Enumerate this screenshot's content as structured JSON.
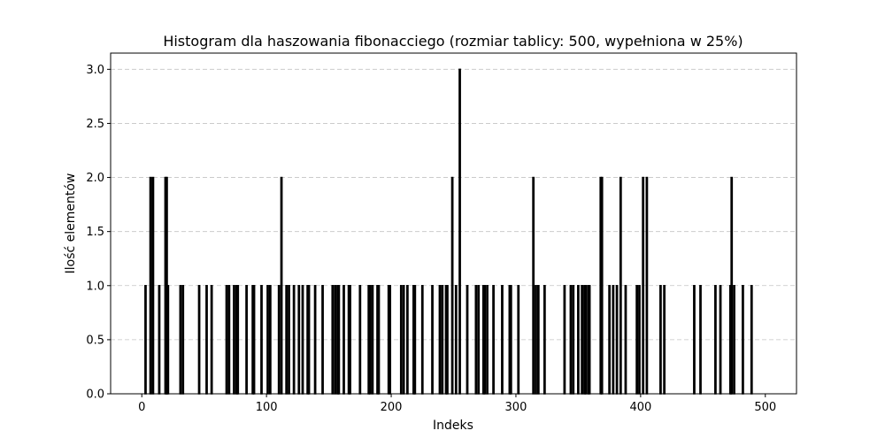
{
  "chart_data": {
    "type": "bar",
    "title": "Histogram dla haszowania fibonacciego (rozmiar tablicy: 500, wypełniona w 25%)",
    "xlabel": "Indeks",
    "ylabel": "Ilość elementów",
    "xlim": [
      -25,
      525
    ],
    "ylim": [
      0,
      3.15
    ],
    "xticks": [
      0,
      100,
      200,
      300,
      400,
      500
    ],
    "xtick_labels": [
      "0",
      "100",
      "200",
      "300",
      "400",
      "500"
    ],
    "yticks": [
      0,
      0.5,
      1,
      1.5,
      2,
      2.5,
      3
    ],
    "ytick_labels": [
      "0.0",
      "0.5",
      "1.0",
      "1.5",
      "2.0",
      "2.5",
      "3.0"
    ],
    "grid": "y-dashed",
    "bar_color": "#000000",
    "points": [
      {
        "x": 3,
        "y": 1
      },
      {
        "x": 7,
        "y": 2
      },
      {
        "x": 9,
        "y": 2
      },
      {
        "x": 14,
        "y": 1
      },
      {
        "x": 19,
        "y": 2
      },
      {
        "x": 20,
        "y": 2
      },
      {
        "x": 21,
        "y": 1
      },
      {
        "x": 31,
        "y": 1
      },
      {
        "x": 33,
        "y": 1
      },
      {
        "x": 46,
        "y": 1
      },
      {
        "x": 52,
        "y": 1
      },
      {
        "x": 56,
        "y": 1
      },
      {
        "x": 68,
        "y": 1
      },
      {
        "x": 70,
        "y": 1
      },
      {
        "x": 74,
        "y": 1
      },
      {
        "x": 76,
        "y": 1
      },
      {
        "x": 77,
        "y": 1
      },
      {
        "x": 84,
        "y": 1
      },
      {
        "x": 89,
        "y": 1
      },
      {
        "x": 90,
        "y": 1
      },
      {
        "x": 96,
        "y": 1
      },
      {
        "x": 101,
        "y": 1
      },
      {
        "x": 103,
        "y": 1
      },
      {
        "x": 110,
        "y": 1
      },
      {
        "x": 112,
        "y": 2
      },
      {
        "x": 116,
        "y": 1
      },
      {
        "x": 118,
        "y": 1
      },
      {
        "x": 122,
        "y": 1
      },
      {
        "x": 126,
        "y": 1
      },
      {
        "x": 129,
        "y": 1
      },
      {
        "x": 133,
        "y": 1
      },
      {
        "x": 134,
        "y": 1
      },
      {
        "x": 139,
        "y": 1
      },
      {
        "x": 145,
        "y": 1
      },
      {
        "x": 153,
        "y": 1
      },
      {
        "x": 155,
        "y": 1
      },
      {
        "x": 157,
        "y": 1
      },
      {
        "x": 158,
        "y": 1
      },
      {
        "x": 162,
        "y": 1
      },
      {
        "x": 166,
        "y": 1
      },
      {
        "x": 167,
        "y": 1
      },
      {
        "x": 175,
        "y": 1
      },
      {
        "x": 182,
        "y": 1
      },
      {
        "x": 183,
        "y": 1
      },
      {
        "x": 185,
        "y": 1
      },
      {
        "x": 189,
        "y": 1
      },
      {
        "x": 190,
        "y": 1
      },
      {
        "x": 198,
        "y": 1
      },
      {
        "x": 199,
        "y": 1
      },
      {
        "x": 208,
        "y": 1
      },
      {
        "x": 210,
        "y": 1
      },
      {
        "x": 213,
        "y": 1
      },
      {
        "x": 218,
        "y": 1
      },
      {
        "x": 219,
        "y": 1
      },
      {
        "x": 225,
        "y": 1
      },
      {
        "x": 233,
        "y": 1
      },
      {
        "x": 239,
        "y": 1
      },
      {
        "x": 241,
        "y": 1
      },
      {
        "x": 244,
        "y": 1
      },
      {
        "x": 245,
        "y": 1
      },
      {
        "x": 249,
        "y": 2
      },
      {
        "x": 252,
        "y": 1
      },
      {
        "x": 255,
        "y": 3
      },
      {
        "x": 261,
        "y": 1
      },
      {
        "x": 268,
        "y": 1
      },
      {
        "x": 270,
        "y": 1
      },
      {
        "x": 274,
        "y": 1
      },
      {
        "x": 275,
        "y": 1
      },
      {
        "x": 277,
        "y": 1
      },
      {
        "x": 282,
        "y": 1
      },
      {
        "x": 289,
        "y": 1
      },
      {
        "x": 295,
        "y": 1
      },
      {
        "x": 296,
        "y": 1
      },
      {
        "x": 302,
        "y": 1
      },
      {
        "x": 314,
        "y": 2
      },
      {
        "x": 316,
        "y": 1
      },
      {
        "x": 318,
        "y": 1
      },
      {
        "x": 323,
        "y": 1
      },
      {
        "x": 339,
        "y": 1
      },
      {
        "x": 344,
        "y": 1
      },
      {
        "x": 346,
        "y": 1
      },
      {
        "x": 350,
        "y": 1
      },
      {
        "x": 353,
        "y": 1
      },
      {
        "x": 355,
        "y": 1
      },
      {
        "x": 356,
        "y": 1
      },
      {
        "x": 358,
        "y": 1
      },
      {
        "x": 359,
        "y": 1
      },
      {
        "x": 368,
        "y": 2
      },
      {
        "x": 369,
        "y": 2
      },
      {
        "x": 375,
        "y": 1
      },
      {
        "x": 378,
        "y": 1
      },
      {
        "x": 381,
        "y": 1
      },
      {
        "x": 384,
        "y": 2
      },
      {
        "x": 388,
        "y": 1
      },
      {
        "x": 397,
        "y": 1
      },
      {
        "x": 399,
        "y": 1
      },
      {
        "x": 402,
        "y": 2
      },
      {
        "x": 405,
        "y": 2
      },
      {
        "x": 416,
        "y": 1
      },
      {
        "x": 419,
        "y": 1
      },
      {
        "x": 443,
        "y": 1
      },
      {
        "x": 448,
        "y": 1
      },
      {
        "x": 460,
        "y": 1
      },
      {
        "x": 464,
        "y": 1
      },
      {
        "x": 472,
        "y": 1
      },
      {
        "x": 473,
        "y": 2
      },
      {
        "x": 475,
        "y": 1
      },
      {
        "x": 482,
        "y": 1
      },
      {
        "x": 489,
        "y": 1
      }
    ]
  }
}
